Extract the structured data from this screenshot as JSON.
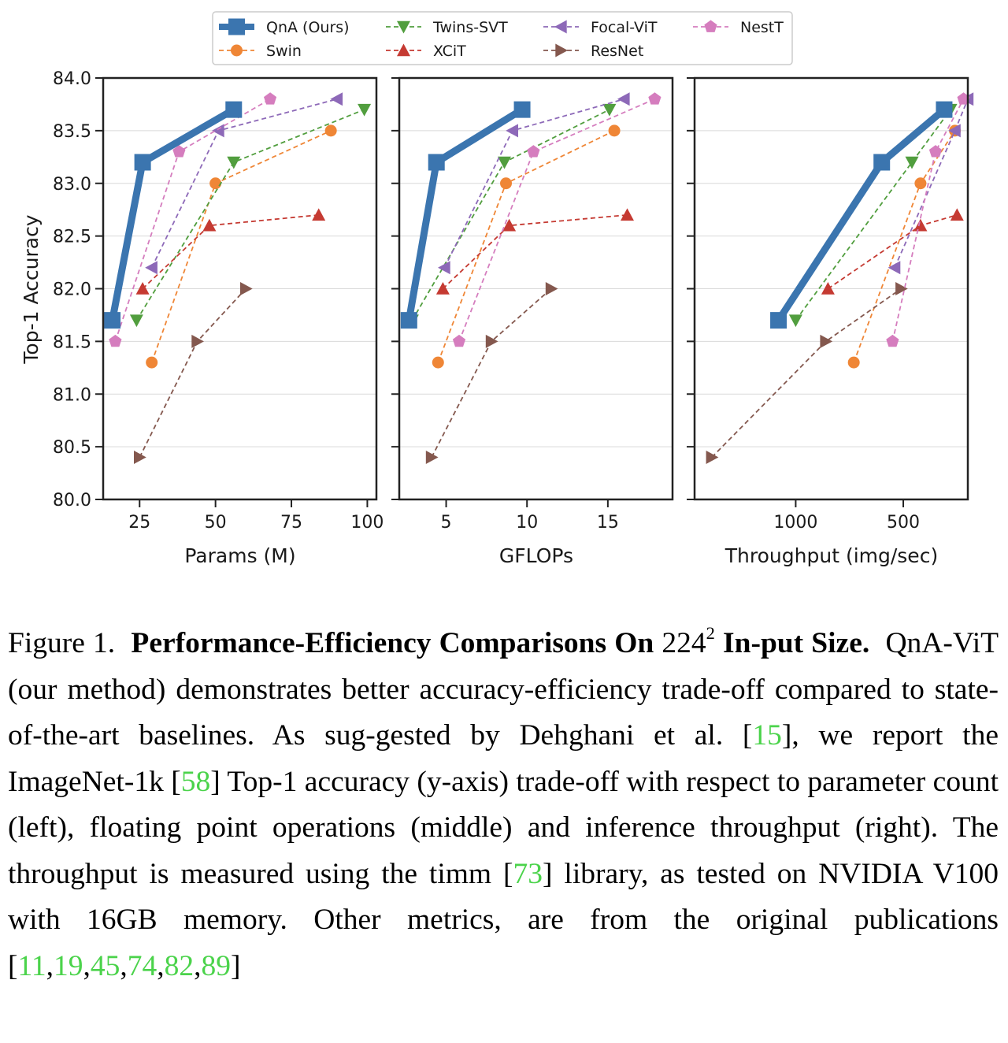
{
  "chart_data": [
    {
      "type": "line",
      "xlabel": "Params (M)",
      "ylabel": "Top-1 Accuracy",
      "xlim": [
        13,
        103
      ],
      "ylim": [
        80.0,
        84.0
      ],
      "xticks": [
        25,
        50,
        75,
        100
      ],
      "yticks": [
        80.0,
        80.5,
        81.0,
        81.5,
        82.0,
        82.5,
        83.0,
        83.5,
        84.0
      ],
      "series": [
        {
          "name": "QnA (Ours)",
          "x": [
            16,
            26,
            56
          ],
          "y": [
            81.7,
            83.2,
            83.7
          ]
        },
        {
          "name": "Swin",
          "x": [
            29,
            50,
            88
          ],
          "y": [
            81.3,
            83.0,
            83.5
          ]
        },
        {
          "name": "Twins-SVT",
          "x": [
            24,
            56,
            99
          ],
          "y": [
            81.7,
            83.2,
            83.7
          ]
        },
        {
          "name": "XCiT",
          "x": [
            26,
            48,
            84
          ],
          "y": [
            82.0,
            82.6,
            82.7
          ]
        },
        {
          "name": "Focal-ViT",
          "x": [
            29,
            51,
            90
          ],
          "y": [
            82.2,
            83.5,
            83.8
          ]
        },
        {
          "name": "ResNet",
          "x": [
            25,
            44,
            60
          ],
          "y": [
            80.4,
            81.5,
            82.0
          ]
        },
        {
          "name": "NestT",
          "x": [
            17,
            38,
            68
          ],
          "y": [
            81.5,
            83.3,
            83.8
          ]
        }
      ]
    },
    {
      "type": "line",
      "xlabel": "GFLOPs",
      "ylabel": "",
      "xlim": [
        2.1,
        19.0
      ],
      "ylim": [
        80.0,
        84.0
      ],
      "xticks": [
        5,
        10,
        15
      ],
      "yticks": [
        80.0,
        80.5,
        81.0,
        81.5,
        82.0,
        82.5,
        83.0,
        83.5,
        84.0
      ],
      "series": [
        {
          "name": "QnA (Ours)",
          "x": [
            2.7,
            4.4,
            9.7
          ],
          "y": [
            81.7,
            83.2,
            83.7
          ]
        },
        {
          "name": "Swin",
          "x": [
            4.5,
            8.7,
            15.4
          ],
          "y": [
            81.3,
            83.0,
            83.5
          ]
        },
        {
          "name": "Twins-SVT",
          "x": [
            2.9,
            8.6,
            15.1
          ],
          "y": [
            81.7,
            83.2,
            83.7
          ]
        },
        {
          "name": "XCiT",
          "x": [
            4.8,
            8.9,
            16.2
          ],
          "y": [
            82.0,
            82.6,
            82.7
          ]
        },
        {
          "name": "Focal-ViT",
          "x": [
            4.9,
            9.1,
            16.0
          ],
          "y": [
            82.2,
            83.5,
            83.8
          ]
        },
        {
          "name": "ResNet",
          "x": [
            4.1,
            7.8,
            11.5
          ],
          "y": [
            80.4,
            81.5,
            82.0
          ]
        },
        {
          "name": "NestT",
          "x": [
            5.8,
            10.4,
            17.9
          ],
          "y": [
            81.5,
            83.3,
            83.8
          ]
        }
      ]
    },
    {
      "type": "line",
      "xlabel": "Throughput (img/sec)",
      "ylabel": "",
      "x_inverted": true,
      "xlim": [
        1470,
        200
      ],
      "ylim": [
        80.0,
        84.0
      ],
      "xticks": [
        1000,
        500
      ],
      "yticks": [
        80.0,
        80.5,
        81.0,
        81.5,
        82.0,
        82.5,
        83.0,
        83.5,
        84.0
      ],
      "series": [
        {
          "name": "QnA (Ours)",
          "x": [
            1080,
            600,
            310
          ],
          "y": [
            81.7,
            83.2,
            83.7
          ]
        },
        {
          "name": "Swin",
          "x": [
            730,
            420,
            260
          ],
          "y": [
            81.3,
            83.0,
            83.5
          ]
        },
        {
          "name": "Twins-SVT",
          "x": [
            1000,
            460,
            280
          ],
          "y": [
            81.7,
            83.2,
            83.7
          ]
        },
        {
          "name": "XCiT",
          "x": [
            850,
            420,
            250
          ],
          "y": [
            82.0,
            82.6,
            82.7
          ]
        },
        {
          "name": "Focal-ViT",
          "x": [
            540,
            260,
            200
          ],
          "y": [
            82.2,
            83.5,
            83.8
          ]
        },
        {
          "name": "ResNet",
          "x": [
            1390,
            860,
            510
          ],
          "y": [
            80.4,
            81.5,
            82.0
          ]
        },
        {
          "name": "NestT",
          "x": [
            550,
            350,
            220
          ],
          "y": [
            81.5,
            83.3,
            83.8
          ]
        }
      ]
    }
  ],
  "legend": {
    "placement": "top-center",
    "entries": [
      {
        "name": "QnA (Ours)",
        "color": "#3b75af",
        "marker": "square",
        "style": "solid-thick"
      },
      {
        "name": "Swin",
        "color": "#ef8636",
        "marker": "circle",
        "style": "dashed"
      },
      {
        "name": "Twins-SVT",
        "color": "#519e3e",
        "marker": "triangle-down",
        "style": "dashed"
      },
      {
        "name": "XCiT",
        "color": "#c53a32",
        "marker": "triangle-up",
        "style": "dashed"
      },
      {
        "name": "Focal-ViT",
        "color": "#8d69b8",
        "marker": "triangle-left",
        "style": "dashed"
      },
      {
        "name": "ResNet",
        "color": "#84584e",
        "marker": "triangle-right",
        "style": "dashed"
      },
      {
        "name": "NestT",
        "color": "#d57dbe",
        "marker": "pentagon",
        "style": "dashed"
      }
    ]
  },
  "caption": {
    "label": "Figure 1.",
    "title_bold": "Performance-Efficiency Comparisons On",
    "size_base": "224",
    "size_exp": "2",
    "title_end": "In-put Size.",
    "text_1": "QnA-ViT (our method) demonstrates better accuracy-efficiency trade-off compared to state-of-the-art baselines. As sug-gested by Dehghani et al. [",
    "ref_1": "15",
    "text_2": "], we report the ImageNet-1k [",
    "ref_2": "58",
    "text_3": "] Top-1 accuracy (y-axis) trade-off with respect to parameter count (left), floating point operations (middle) and inference throughput (right). The throughput is measured using the timm [",
    "ref_3": "73",
    "text_4": "] library, as tested on NVIDIA V100 with 16GB memory. Other metrics, are from the original publications [",
    "refs_final": [
      "11",
      "19",
      "45",
      "74",
      "82",
      "89"
    ],
    "text_5": "]"
  }
}
